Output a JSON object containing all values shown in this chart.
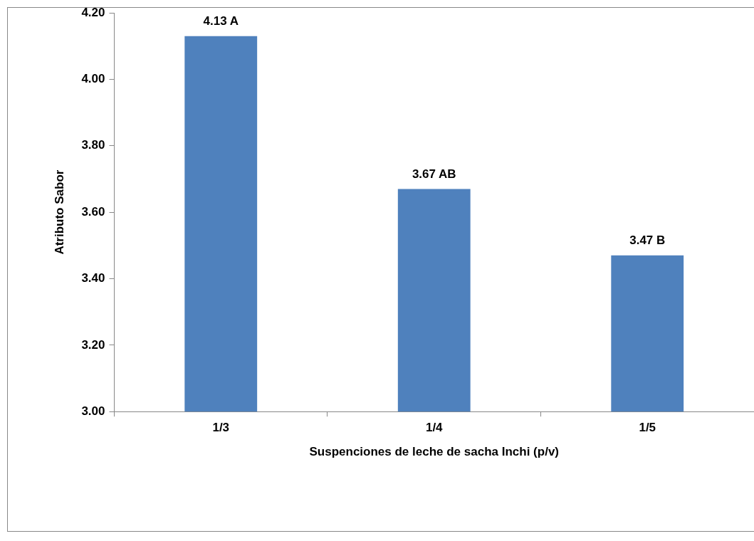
{
  "chart_data": {
    "type": "bar",
    "xlabel": "Suspenciones de leche de sacha Inchi (p/v)",
    "ylabel": "Atributo Sabor",
    "categories": [
      "1/3",
      "1/4",
      "1/5"
    ],
    "values": [
      4.13,
      3.67,
      3.47
    ],
    "value_labels": [
      "4.13 A",
      "3.67 AB",
      "3.47 B"
    ],
    "color": "#4f81bd",
    "ylim": [
      3.0,
      4.2
    ],
    "yticks": [
      {
        "value": 3.0,
        "label": "3.00"
      },
      {
        "value": 3.2,
        "label": "3.20"
      },
      {
        "value": 3.4,
        "label": "3.40"
      },
      {
        "value": 3.6,
        "label": "3.60"
      },
      {
        "value": 3.8,
        "label": "3.80"
      },
      {
        "value": 4.0,
        "label": "4.00"
      },
      {
        "value": 4.2,
        "label": "4.20"
      }
    ],
    "grid": false,
    "legend": false
  }
}
